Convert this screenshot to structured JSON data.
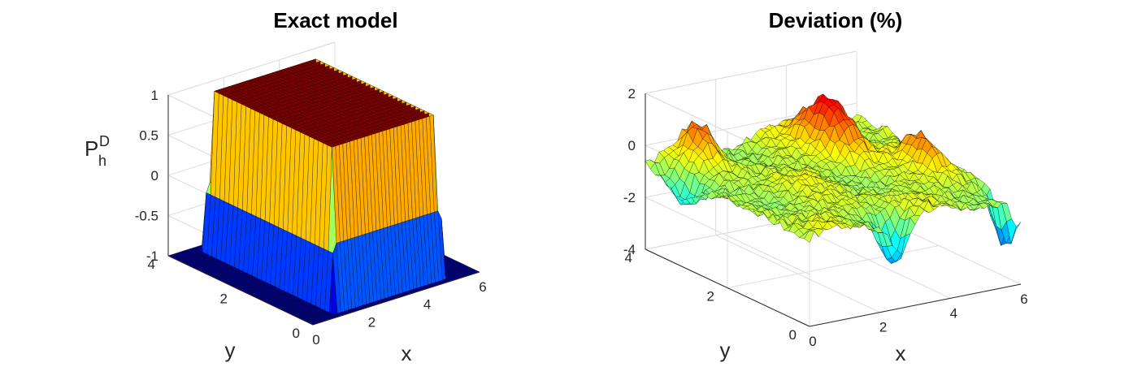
{
  "chart_data": [
    {
      "type": "surface",
      "title": "Exact model",
      "xlabel": "x",
      "ylabel": "y",
      "zlabel": "P",
      "zlabel_superscript": "D",
      "zlabel_subscript": "h",
      "xlim": [
        0,
        6
      ],
      "ylim": [
        0,
        4
      ],
      "zlim": [
        -1,
        1
      ],
      "xticks": [
        "0",
        "2",
        "4",
        "6"
      ],
      "yticks": [
        "0",
        "2",
        "4"
      ],
      "zticks": [
        "-1",
        "-0.5",
        "0",
        "0.5",
        "1"
      ],
      "colormap": "jet",
      "grid": true,
      "plateau": {
        "x": [
          1,
          5
        ],
        "y": [
          0.2,
          3.8
        ],
        "z_top": 1,
        "z_floor": -1
      }
    },
    {
      "type": "surface",
      "title": "Deviation (%)",
      "xlabel": "x",
      "ylabel": "y",
      "zlabel": "",
      "xlim": [
        0,
        6
      ],
      "ylim": [
        0,
        4
      ],
      "zlim": [
        -4,
        2
      ],
      "xticks": [
        "0",
        "2",
        "4",
        "6"
      ],
      "yticks": [
        "0",
        "2",
        "4"
      ],
      "zticks": [
        "-4",
        "-2",
        "0",
        "2"
      ],
      "colormap": "jet",
      "grid": true
    }
  ]
}
